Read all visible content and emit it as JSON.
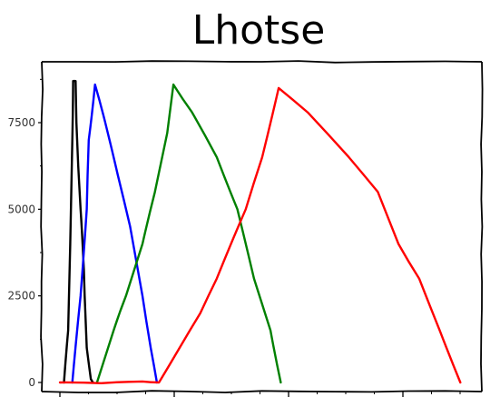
{
  "chart_data": {
    "type": "line",
    "title": "Lhotse",
    "xlabel": "",
    "ylabel": "",
    "ylim": [
      0,
      9000
    ],
    "xlim": [
      0,
      1
    ],
    "y_ticks": [
      0,
      2500,
      5000,
      7500
    ],
    "y_tick_labels": [
      "0",
      "2500",
      "5000",
      "7500"
    ],
    "x_tick_labels": [],
    "grid": false,
    "style": "xkcd",
    "series": [
      {
        "color": "#000000",
        "points": [
          [
            0.01,
            0
          ],
          [
            0.02,
            1500
          ],
          [
            0.025,
            4000
          ],
          [
            0.03,
            7000
          ],
          [
            0.032,
            8700
          ],
          [
            0.038,
            8700
          ],
          [
            0.04,
            7500
          ],
          [
            0.05,
            5000
          ],
          [
            0.055,
            4000
          ],
          [
            0.06,
            2500
          ],
          [
            0.065,
            1000
          ],
          [
            0.075,
            100
          ],
          [
            0.08,
            0
          ]
        ]
      },
      {
        "color": "#0000ff",
        "points": [
          [
            0.03,
            0
          ],
          [
            0.05,
            2500
          ],
          [
            0.065,
            5000
          ],
          [
            0.07,
            7000
          ],
          [
            0.085,
            8600
          ],
          [
            0.11,
            7500
          ],
          [
            0.14,
            6000
          ],
          [
            0.17,
            4500
          ],
          [
            0.2,
            2500
          ],
          [
            0.22,
            1000
          ],
          [
            0.235,
            0
          ]
        ]
      },
      {
        "color": "#008000",
        "points": [
          [
            0.09,
            0
          ],
          [
            0.13,
            1500
          ],
          [
            0.16,
            2500
          ],
          [
            0.2,
            4000
          ],
          [
            0.23,
            5500
          ],
          [
            0.26,
            7200
          ],
          [
            0.275,
            8600
          ],
          [
            0.32,
            7800
          ],
          [
            0.38,
            6500
          ],
          [
            0.43,
            5000
          ],
          [
            0.47,
            3000
          ],
          [
            0.51,
            1500
          ],
          [
            0.535,
            0
          ]
        ]
      },
      {
        "color": "#ff0000",
        "points": [
          [
            0.0,
            0
          ],
          [
            0.1,
            -20
          ],
          [
            0.2,
            30
          ],
          [
            0.24,
            0
          ],
          [
            0.29,
            1000
          ],
          [
            0.34,
            2000
          ],
          [
            0.38,
            3000
          ],
          [
            0.45,
            5000
          ],
          [
            0.49,
            6500
          ],
          [
            0.53,
            8500
          ],
          [
            0.6,
            7800
          ],
          [
            0.7,
            6500
          ],
          [
            0.77,
            5500
          ],
          [
            0.82,
            4000
          ],
          [
            0.87,
            3000
          ],
          [
            0.92,
            1500
          ],
          [
            0.97,
            0
          ]
        ]
      }
    ]
  }
}
